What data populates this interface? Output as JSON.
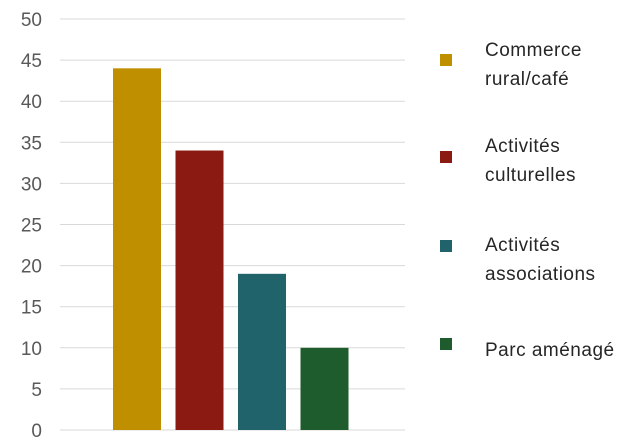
{
  "chart_data": {
    "type": "bar",
    "categories": [
      "Commerce rural/café",
      "Activités culturelles",
      "Activités associations",
      "Parc aménagé"
    ],
    "values": [
      44,
      34,
      19,
      10
    ],
    "colors": [
      "#BF8F00",
      "#8B1A13",
      "#20636B",
      "#1E5C2E"
    ],
    "ylim": [
      0,
      50
    ],
    "yticks": [
      0,
      5,
      10,
      15,
      20,
      25,
      30,
      35,
      40,
      45,
      50
    ],
    "grid": true,
    "legend_position": "right",
    "legend": [
      {
        "label": "Commerce\nrural/café",
        "color": "#BF8F00"
      },
      {
        "label": "Activités\nculturelles",
        "color": "#8B1A13"
      },
      {
        "label": "Activités\nassociations",
        "color": "#20636B"
      },
      {
        "label": "Parc aménagé",
        "color": "#1E5C2E"
      }
    ]
  }
}
